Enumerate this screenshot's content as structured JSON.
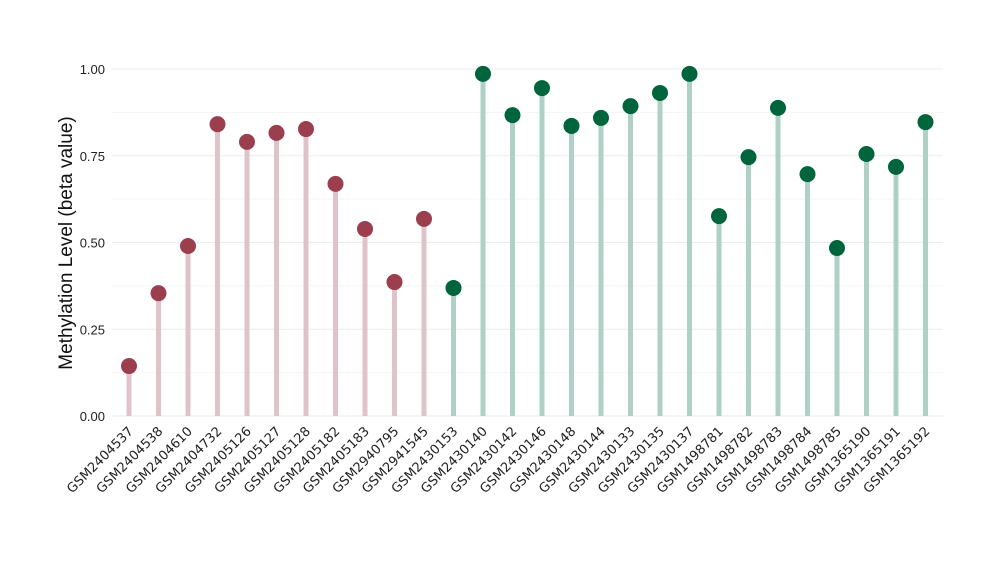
{
  "chart_data": {
    "type": "lollipop",
    "title": "",
    "xlabel": "",
    "ylabel": "Methylation Level (beta value)",
    "ylim": [
      0,
      1
    ],
    "yticks": [
      "0.00",
      "0.25",
      "0.50",
      "0.75",
      "1.00"
    ],
    "grid": true,
    "colors": {
      "group1": {
        "point": "#9b3f4f",
        "stem": "#dfc3c9"
      },
      "group2": {
        "point": "#00643c",
        "stem": "#afd0c4"
      }
    },
    "categories": [
      "GSM2404537",
      "GSM2404538",
      "GSM2404610",
      "GSM2404732",
      "GSM2405126",
      "GSM2405127",
      "GSM2405128",
      "GSM2405182",
      "GSM2405183",
      "GSM2940795",
      "GSM2941545",
      "GSM2430153",
      "GSM2430140",
      "GSM2430142",
      "GSM2430146",
      "GSM2430148",
      "GSM2430144",
      "GSM2430133",
      "GSM2430135",
      "GSM2430137",
      "GSM1498781",
      "GSM1498782",
      "GSM1498783",
      "GSM1498784",
      "GSM1498785",
      "GSM1365190",
      "GSM1365191",
      "GSM1365192"
    ],
    "values": [
      0.144,
      0.354,
      0.49,
      0.841,
      0.79,
      0.816,
      0.827,
      0.669,
      0.539,
      0.386,
      0.568,
      0.369,
      0.986,
      0.867,
      0.945,
      0.836,
      0.859,
      0.893,
      0.931,
      0.986,
      0.576,
      0.746,
      0.888,
      0.697,
      0.484,
      0.755,
      0.718,
      0.847
    ],
    "groups": [
      "group1",
      "group1",
      "group1",
      "group1",
      "group1",
      "group1",
      "group1",
      "group1",
      "group1",
      "group1",
      "group1",
      "group2",
      "group2",
      "group2",
      "group2",
      "group2",
      "group2",
      "group2",
      "group2",
      "group2",
      "group2",
      "group2",
      "group2",
      "group2",
      "group2",
      "group2",
      "group2",
      "group2"
    ]
  }
}
